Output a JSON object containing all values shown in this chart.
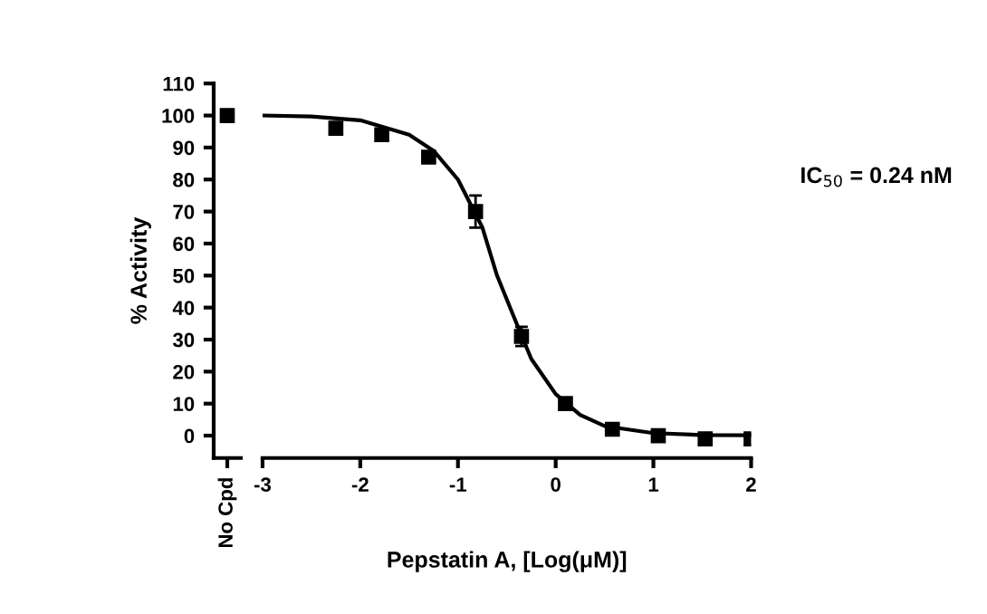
{
  "chart_data": [
    {
      "type": "scatter",
      "categories": [
        "No Cpd"
      ],
      "ylabel": "% Activity",
      "ylim": [
        -7,
        110
      ],
      "yticks": [
        0,
        10,
        20,
        30,
        40,
        50,
        60,
        70,
        80,
        90,
        100,
        110
      ],
      "marker": "square",
      "series": [
        {
          "color": "#000000",
          "values": [
            100
          ]
        }
      ]
    },
    {
      "type": "scatter",
      "xlabel": "Pepstatin A, [Log(μM)]",
      "xlim": [
        -3,
        2
      ],
      "xticks": [
        -3,
        -2,
        -1,
        0,
        1,
        2
      ],
      "ylim": [
        -7,
        110
      ],
      "tick_labels": "x",
      "marker": "square",
      "annotations": [
        "IC$_{50}$ = 0.24 nM"
      ],
      "series": [
        {
          "color": "#000000",
          "x": [
            -2.25,
            -1.78,
            -1.3,
            -0.82,
            -0.35,
            0.1,
            0.58,
            1.05,
            1.53,
            2.0
          ],
          "values": [
            96,
            94,
            87,
            70,
            31,
            10,
            2,
            0,
            -1,
            -1
          ],
          "errors": [
            null,
            null,
            null,
            5,
            3,
            null,
            null,
            null,
            null,
            null
          ]
        },
        {
          "type": "line",
          "color": "#000000",
          "marker": "none",
          "x": [
            -3,
            -2.5,
            -2,
            -1.5,
            -1.25,
            -1,
            -0.75,
            -0.6,
            -0.4,
            -0.25,
            0,
            0.25,
            0.5,
            1,
            1.5,
            2
          ],
          "values": [
            100,
            99.7,
            98.5,
            94,
            89,
            80,
            65,
            50,
            35,
            24,
            13,
            6.5,
            3,
            0.8,
            0.2,
            0.1
          ]
        }
      ]
    }
  ]
}
